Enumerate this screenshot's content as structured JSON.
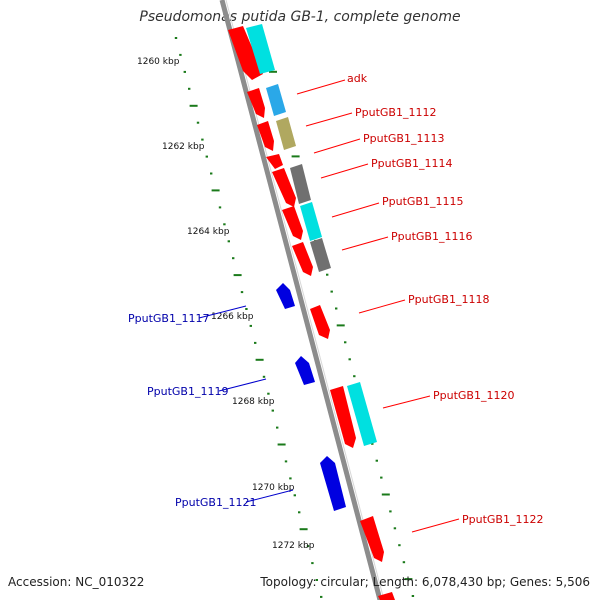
{
  "title": "Pseudomonas putida GB-1, complete genome",
  "footer": {
    "accession": "Accession: NC_010322",
    "summary": "Topology: circular; Length: 6,078,430 bp; Genes: 5,506"
  },
  "colors": {
    "backbone": "#8c8c8c",
    "forward_gene": "#ff0000",
    "reverse_gene": "#0000e0",
    "tick": "#1a7a1a",
    "forward_label": "#cc0000",
    "reverse_label": "#0000aa",
    "cog_cyan": "#00e0e0",
    "cog_blue": "#2aa8e8",
    "cog_olive": "#b0a860",
    "cog_gray": "#707070"
  },
  "scale_labels": [
    "1260 kbp",
    "1262 kbp",
    "1264 kbp",
    "1266 kbp",
    "1268 kbp",
    "1270 kbp",
    "1272 kbp"
  ],
  "forward_labels": [
    "adk",
    "PputGB1_1112",
    "PputGB1_1113",
    "PputGB1_1114",
    "PputGB1_1115",
    "PputGB1_1116",
    "PputGB1_1118",
    "PputGB1_1120",
    "PputGB1_1122"
  ],
  "reverse_labels": [
    "PputGB1_1117",
    "PputGB1_1119",
    "PputGB1_1121"
  ]
}
